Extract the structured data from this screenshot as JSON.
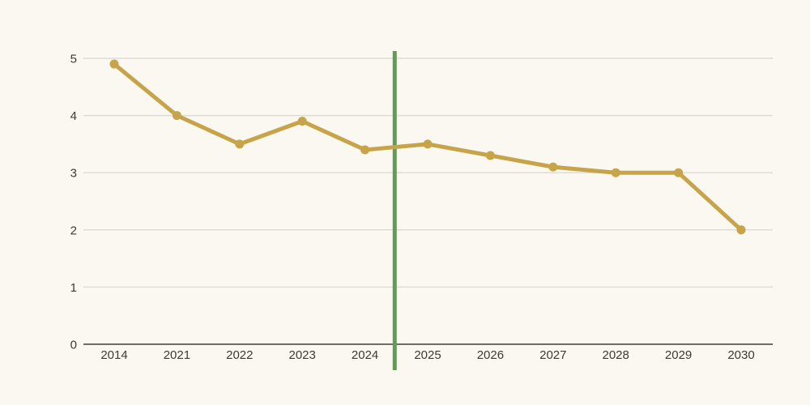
{
  "chart_data": {
    "type": "line",
    "title": "",
    "xlabel": "",
    "ylabel": "",
    "categories": [
      "2014",
      "2021",
      "2022",
      "2023",
      "2024",
      "2025",
      "2026",
      "2027",
      "2028",
      "2029",
      "2030"
    ],
    "series": [
      {
        "name": "value",
        "values": [
          4.9,
          4.0,
          3.5,
          3.9,
          3.4,
          3.5,
          3.3,
          3.1,
          3.0,
          3.0,
          2.0
        ],
        "color": "#c7a449"
      }
    ],
    "y_ticks": [
      0,
      1,
      2,
      3,
      4,
      5
    ],
    "ylim": [
      0,
      5
    ],
    "grid": true,
    "legend_position": "none",
    "annotation": {
      "type": "vertical-line",
      "between": [
        "2024",
        "2025"
      ],
      "color": "#5f9e52"
    }
  },
  "colors": {
    "background": "#faf8f1",
    "series_line": "#c7a449",
    "marker": "#c7a449",
    "gridline": "#dedcd7",
    "axis_line": "#6e6b64",
    "tick_label": "#3d3a36",
    "annotation_line": "#5f9e52"
  }
}
